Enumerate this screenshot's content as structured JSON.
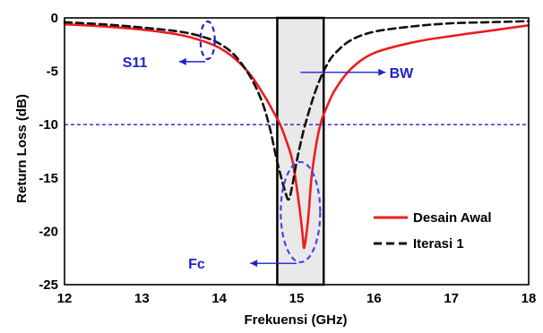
{
  "chart_data": {
    "type": "line",
    "xlabel": "Frekuensi (GHz)",
    "ylabel": "Return Loss (dB)",
    "xlim": [
      12,
      18
    ],
    "ylim": [
      -25,
      0
    ],
    "xticks": [
      "12",
      "13",
      "14",
      "15",
      "16",
      "17",
      "18"
    ],
    "yticks": [
      "0",
      "-5",
      "-10",
      "-15",
      "-20",
      "-25"
    ],
    "grid": false,
    "legend_position": "bottom-right",
    "reference_line": {
      "y": -10,
      "color": "#2222dd",
      "style": "dashed"
    },
    "highlight_band": {
      "x": [
        14.75,
        15.35
      ],
      "color": "#e9e9e9"
    },
    "series": [
      {
        "name": "Desain Awal",
        "color": "#ee1c1c",
        "style": "solid",
        "x": [
          12,
          12.5,
          13,
          13.5,
          13.8,
          14,
          14.2,
          14.4,
          14.6,
          14.7,
          14.8,
          14.9,
          14.95,
          15.0,
          15.05,
          15.08,
          15.1,
          15.15,
          15.2,
          15.3,
          15.4,
          15.5,
          15.7,
          16,
          16.5,
          17,
          17.5,
          18
        ],
        "y": [
          -0.6,
          -0.8,
          -1.1,
          -1.6,
          -2.2,
          -2.8,
          -3.8,
          -5.3,
          -7.5,
          -8.8,
          -10.2,
          -12.2,
          -13.5,
          -15.8,
          -18.5,
          -20.5,
          -21.5,
          -18.8,
          -14.5,
          -10.2,
          -8.2,
          -6.7,
          -4.8,
          -3.3,
          -2.3,
          -1.7,
          -1.2,
          -0.7
        ]
      },
      {
        "name": "Iterasi 1",
        "color": "#111111",
        "style": "dashed",
        "x": [
          12,
          12.5,
          13,
          13.5,
          13.8,
          14,
          14.2,
          14.4,
          14.55,
          14.65,
          14.75,
          14.85,
          14.9,
          14.95,
          15.0,
          15.05,
          15.1,
          15.2,
          15.3,
          15.4,
          15.5,
          15.7,
          16,
          16.5,
          17,
          17.5,
          18
        ],
        "y": [
          -0.4,
          -0.6,
          -0.9,
          -1.3,
          -1.8,
          -2.4,
          -3.5,
          -5.5,
          -7.8,
          -10.2,
          -13.5,
          -16.2,
          -17.0,
          -15.5,
          -13.5,
          -11.8,
          -10.3,
          -7.8,
          -5.8,
          -4.3,
          -3.3,
          -2.1,
          -1.3,
          -0.8,
          -0.5,
          -0.4,
          -0.3
        ]
      }
    ],
    "annotations": [
      {
        "text": "S11",
        "color": "#2222cc"
      },
      {
        "text": "BW",
        "color": "#2222cc"
      },
      {
        "text": "Fc",
        "color": "#2222cc"
      }
    ]
  }
}
